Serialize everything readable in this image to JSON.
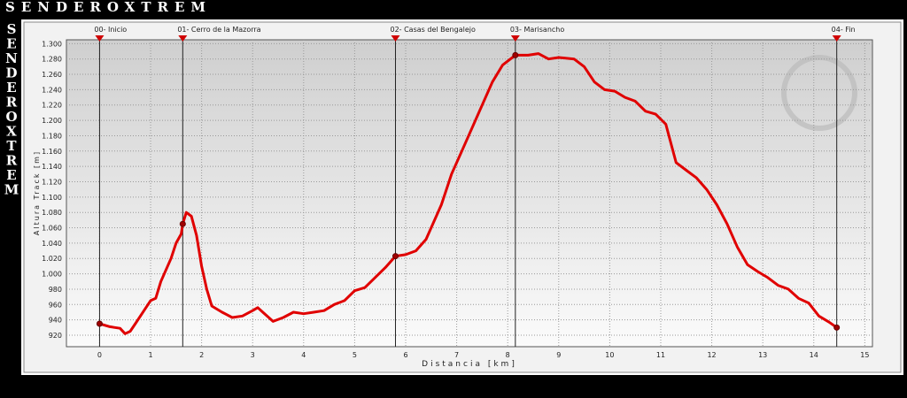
{
  "brand": "SENDEROXTREM",
  "brand_vertical": [
    "S",
    "E",
    "N",
    "D",
    "E",
    "R",
    "O",
    "X",
    "T",
    "R",
    "E",
    "M"
  ],
  "chart_data": {
    "type": "line",
    "x_label": "Distancia [km]",
    "y_label": "Altura Track [m]",
    "x": [
      0,
      0.2,
      0.3,
      0.4,
      0.5,
      0.6,
      0.7,
      0.9,
      1.0,
      1.1,
      1.2,
      1.4,
      1.5,
      1.6,
      1.63,
      1.7,
      1.8,
      1.9,
      2.0,
      2.1,
      2.2,
      2.4,
      2.6,
      2.8,
      3.0,
      3.1,
      3.2,
      3.4,
      3.6,
      3.8,
      4.0,
      4.2,
      4.4,
      4.6,
      4.8,
      5.0,
      5.2,
      5.4,
      5.6,
      5.8,
      6.0,
      6.2,
      6.4,
      6.5,
      6.7,
      6.9,
      7.1,
      7.3,
      7.5,
      7.7,
      7.9,
      8.15,
      8.4,
      8.6,
      8.8,
      9.0,
      9.3,
      9.5,
      9.7,
      9.9,
      10.1,
      10.3,
      10.5,
      10.7,
      10.9,
      11.1,
      11.2,
      11.3,
      11.5,
      11.7,
      11.9,
      12.1,
      12.3,
      12.5,
      12.7,
      12.9,
      13.1,
      13.3,
      13.5,
      13.7,
      13.9,
      14.1,
      14.3,
      14.45
    ],
    "values": [
      935,
      931,
      930,
      929,
      922,
      925,
      935,
      955,
      965,
      968,
      990,
      1020,
      1040,
      1052,
      1065,
      1080,
      1075,
      1050,
      1010,
      980,
      958,
      950,
      943,
      945,
      952,
      956,
      950,
      938,
      943,
      950,
      948,
      950,
      952,
      960,
      965,
      978,
      982,
      995,
      1008,
      1023,
      1025,
      1030,
      1045,
      1060,
      1090,
      1130,
      1160,
      1190,
      1220,
      1250,
      1272,
      1285,
      1285,
      1287,
      1280,
      1282,
      1280,
      1270,
      1250,
      1240,
      1238,
      1230,
      1225,
      1212,
      1208,
      1195,
      1170,
      1145,
      1135,
      1125,
      1110,
      1090,
      1065,
      1035,
      1012,
      1003,
      995,
      985,
      980,
      968,
      962,
      945,
      937,
      930
    ],
    "color": "#e00000",
    "xlim": [
      -0.65,
      15.15
    ],
    "ylim": [
      905,
      1305
    ],
    "xticks": [
      0,
      1,
      2,
      3,
      4,
      5,
      6,
      7,
      8,
      9,
      10,
      11,
      12,
      13,
      14,
      15
    ],
    "yticks": [
      920,
      940,
      960,
      980,
      {
        "value": 1000,
        "label": "1.000"
      },
      {
        "value": 1020,
        "label": "1.020"
      },
      {
        "value": 1040,
        "label": "1.040"
      },
      {
        "value": 1060,
        "label": "1.060"
      },
      {
        "value": 1080,
        "label": "1.080"
      },
      {
        "value": 1100,
        "label": "1.100"
      },
      {
        "value": 1120,
        "label": "1.120"
      },
      {
        "value": 1140,
        "label": "1.140"
      },
      {
        "value": 1160,
        "label": "1.160"
      },
      {
        "value": 1180,
        "label": "1.180"
      },
      {
        "value": 1200,
        "label": "1.200"
      },
      {
        "value": 1220,
        "label": "1.220"
      },
      {
        "value": 1240,
        "label": "1.240"
      },
      {
        "value": 1260,
        "label": "1.260"
      },
      {
        "value": 1280,
        "label": "1.280"
      },
      {
        "value": 1300,
        "label": "1.300"
      }
    ],
    "grid": true,
    "waypoints": [
      {
        "label": "00- Inicio",
        "x": 0,
        "y": 935
      },
      {
        "label": "01- Cerro de la Mazorra",
        "x": 1.63,
        "y": 1065
      },
      {
        "label": "02- Casas del Bengalejo",
        "x": 5.8,
        "y": 1023
      },
      {
        "label": "03- Marisancho",
        "x": 8.15,
        "y": 1285
      },
      {
        "label": "04- Fin",
        "x": 14.45,
        "y": 930
      }
    ]
  }
}
